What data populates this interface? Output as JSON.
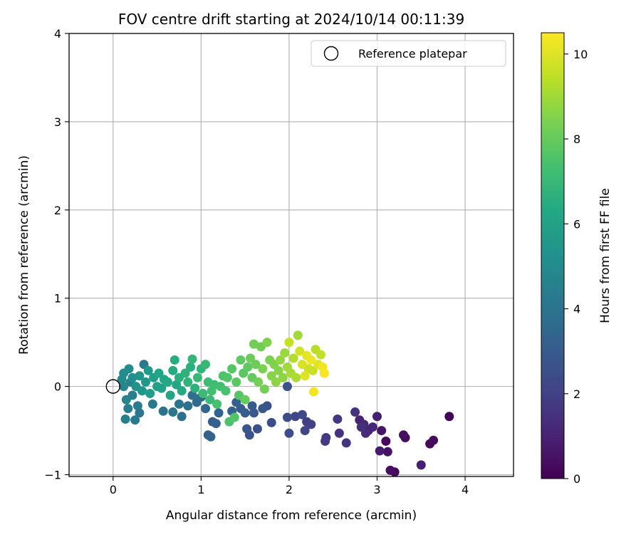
{
  "chart_data": {
    "type": "scatter",
    "title": "FOV centre drift starting at 2024/10/14 00:11:39",
    "xlabel": "Angular distance from reference (arcmin)",
    "ylabel": "Rotation from reference (arcmin)",
    "xlim": [
      -0.5,
      4.55
    ],
    "ylim": [
      -1.02,
      4.0
    ],
    "xticks": [
      0,
      1,
      2,
      3,
      4
    ],
    "yticks": [
      -1,
      0,
      1,
      2,
      3,
      4
    ],
    "xtick_labels": [
      "0",
      "1",
      "2",
      "3",
      "4"
    ],
    "ytick_labels": [
      "−1",
      "0",
      "1",
      "2",
      "3",
      "4"
    ],
    "grid": true,
    "legend": {
      "position": "top-right",
      "entries": [
        {
          "label": "Reference platepar",
          "marker": "open-circle"
        }
      ]
    },
    "reference_point": {
      "x": 0,
      "y": 0
    },
    "colorbar": {
      "label": "Hours from first FF file",
      "colormap": "viridis",
      "range": [
        0,
        10.5
      ],
      "ticks": [
        0,
        2,
        4,
        6,
        8,
        10
      ],
      "tick_labels": [
        "0",
        "2",
        "4",
        "6",
        "8",
        "10"
      ]
    },
    "points": [
      {
        "x": 3.82,
        "y": -0.34,
        "c": 0.1
      },
      {
        "x": 3.2,
        "y": -0.97,
        "c": 0.3
      },
      {
        "x": 3.15,
        "y": -0.95,
        "c": 0.4
      },
      {
        "x": 3.12,
        "y": -0.74,
        "c": 0.5
      },
      {
        "x": 3.1,
        "y": -0.62,
        "c": 0.2
      },
      {
        "x": 3.05,
        "y": -0.5,
        "c": 0.6
      },
      {
        "x": 3.03,
        "y": -0.73,
        "c": 0.8
      },
      {
        "x": 3.3,
        "y": -0.55,
        "c": 0.4
      },
      {
        "x": 3.32,
        "y": -0.58,
        "c": 0.3
      },
      {
        "x": 3.5,
        "y": -0.89,
        "c": 0.9
      },
      {
        "x": 3.6,
        "y": -0.65,
        "c": 0.2
      },
      {
        "x": 3.64,
        "y": -0.61,
        "c": 0.3
      },
      {
        "x": 3.0,
        "y": -0.34,
        "c": 0.9
      },
      {
        "x": 2.95,
        "y": -0.46,
        "c": 1.1
      },
      {
        "x": 2.9,
        "y": -0.5,
        "c": 1.0
      },
      {
        "x": 2.87,
        "y": -0.53,
        "c": 1.3
      },
      {
        "x": 2.85,
        "y": -0.43,
        "c": 1.2
      },
      {
        "x": 2.82,
        "y": -0.46,
        "c": 1.4
      },
      {
        "x": 2.8,
        "y": -0.38,
        "c": 1.0
      },
      {
        "x": 2.75,
        "y": -0.29,
        "c": 1.5
      },
      {
        "x": 2.65,
        "y": -0.64,
        "c": 1.6
      },
      {
        "x": 2.57,
        "y": -0.53,
        "c": 1.5
      },
      {
        "x": 2.55,
        "y": -0.37,
        "c": 1.7
      },
      {
        "x": 2.42,
        "y": -0.58,
        "c": 1.8
      },
      {
        "x": 2.41,
        "y": -0.62,
        "c": 1.7
      },
      {
        "x": 2.25,
        "y": -0.43,
        "c": 2.0
      },
      {
        "x": 2.2,
        "y": -0.4,
        "c": 1.9
      },
      {
        "x": 2.18,
        "y": -0.5,
        "c": 2.1
      },
      {
        "x": 2.15,
        "y": -0.32,
        "c": 2.3
      },
      {
        "x": 2.07,
        "y": -0.34,
        "c": 2.2
      },
      {
        "x": 2.0,
        "y": -0.53,
        "c": 2.4
      },
      {
        "x": 1.98,
        "y": -0.35,
        "c": 2.5
      },
      {
        "x": 1.98,
        "y": 0.0,
        "c": 2.6
      },
      {
        "x": 1.8,
        "y": -0.41,
        "c": 2.5
      },
      {
        "x": 1.75,
        "y": -0.22,
        "c": 2.7
      },
      {
        "x": 1.7,
        "y": -0.25,
        "c": 2.8
      },
      {
        "x": 1.64,
        "y": -0.48,
        "c": 2.6
      },
      {
        "x": 1.6,
        "y": -0.3,
        "c": 2.9
      },
      {
        "x": 1.58,
        "y": -0.22,
        "c": 3.0
      },
      {
        "x": 1.55,
        "y": -0.55,
        "c": 2.7
      },
      {
        "x": 1.52,
        "y": -0.48,
        "c": 2.8
      },
      {
        "x": 1.5,
        "y": -0.3,
        "c": 3.1
      },
      {
        "x": 1.45,
        "y": -0.25,
        "c": 3.0
      },
      {
        "x": 1.4,
        "y": -0.18,
        "c": 3.2
      },
      {
        "x": 1.35,
        "y": -0.28,
        "c": 3.3
      },
      {
        "x": 1.2,
        "y": -0.3,
        "c": 3.4
      },
      {
        "x": 1.17,
        "y": -0.42,
        "c": 3.2
      },
      {
        "x": 1.13,
        "y": -0.4,
        "c": 3.1
      },
      {
        "x": 1.11,
        "y": -0.57,
        "c": 3.3
      },
      {
        "x": 1.08,
        "y": -0.55,
        "c": 3.2
      },
      {
        "x": 1.05,
        "y": -0.25,
        "c": 3.5
      },
      {
        "x": 1.0,
        "y": -0.12,
        "c": 3.6
      },
      {
        "x": 0.95,
        "y": -0.18,
        "c": 3.7
      },
      {
        "x": 0.9,
        "y": -0.1,
        "c": 3.8
      },
      {
        "x": 0.85,
        "y": -0.22,
        "c": 3.9
      },
      {
        "x": 0.75,
        "y": -0.2,
        "c": 4.0
      },
      {
        "x": 0.78,
        "y": -0.34,
        "c": 3.8
      },
      {
        "x": 0.68,
        "y": -0.29,
        "c": 4.1
      },
      {
        "x": 0.57,
        "y": -0.28,
        "c": 4.0
      },
      {
        "x": 0.45,
        "y": -0.2,
        "c": 4.2
      },
      {
        "x": 0.35,
        "y": 0.25,
        "c": 4.3
      },
      {
        "x": 0.3,
        "y": -0.3,
        "c": 4.1
      },
      {
        "x": 0.28,
        "y": -0.22,
        "c": 4.4
      },
      {
        "x": 0.25,
        "y": -0.38,
        "c": 4.3
      },
      {
        "x": 0.22,
        "y": -0.1,
        "c": 4.5
      },
      {
        "x": 0.2,
        "y": 0.05,
        "c": 4.6
      },
      {
        "x": 0.17,
        "y": -0.25,
        "c": 4.4
      },
      {
        "x": 0.15,
        "y": -0.15,
        "c": 4.7
      },
      {
        "x": 0.14,
        "y": -0.37,
        "c": 4.5
      },
      {
        "x": 0.12,
        "y": 0.0,
        "c": 4.8
      },
      {
        "x": 0.1,
        "y": 0.08,
        "c": 4.9
      },
      {
        "x": 0.12,
        "y": 0.15,
        "c": 5.0
      },
      {
        "x": 0.18,
        "y": 0.2,
        "c": 5.1
      },
      {
        "x": 0.22,
        "y": 0.1,
        "c": 5.2
      },
      {
        "x": 0.26,
        "y": 0.0,
        "c": 5.3
      },
      {
        "x": 0.3,
        "y": 0.12,
        "c": 5.4
      },
      {
        "x": 0.33,
        "y": -0.05,
        "c": 5.5
      },
      {
        "x": 0.37,
        "y": 0.05,
        "c": 5.6
      },
      {
        "x": 0.4,
        "y": 0.18,
        "c": 5.7
      },
      {
        "x": 0.42,
        "y": -0.08,
        "c": 5.8
      },
      {
        "x": 0.46,
        "y": 0.1,
        "c": 5.9
      },
      {
        "x": 0.5,
        "y": 0.0,
        "c": 6.0
      },
      {
        "x": 0.52,
        "y": 0.15,
        "c": 6.1
      },
      {
        "x": 0.55,
        "y": -0.02,
        "c": 6.0
      },
      {
        "x": 0.58,
        "y": 0.08,
        "c": 6.2
      },
      {
        "x": 0.62,
        "y": 0.05,
        "c": 6.3
      },
      {
        "x": 0.65,
        "y": -0.1,
        "c": 6.1
      },
      {
        "x": 0.68,
        "y": 0.18,
        "c": 6.4
      },
      {
        "x": 0.7,
        "y": 0.3,
        "c": 6.5
      },
      {
        "x": 0.72,
        "y": 0.02,
        "c": 6.3
      },
      {
        "x": 0.75,
        "y": 0.1,
        "c": 6.6
      },
      {
        "x": 0.78,
        "y": -0.05,
        "c": 6.4
      },
      {
        "x": 0.82,
        "y": 0.15,
        "c": 6.7
      },
      {
        "x": 0.85,
        "y": 0.05,
        "c": 6.8
      },
      {
        "x": 0.88,
        "y": 0.22,
        "c": 6.6
      },
      {
        "x": 0.9,
        "y": 0.31,
        "c": 6.9
      },
      {
        "x": 0.93,
        "y": -0.02,
        "c": 6.7
      },
      {
        "x": 0.96,
        "y": 0.1,
        "c": 7.0
      },
      {
        "x": 1.0,
        "y": 0.2,
        "c": 6.8
      },
      {
        "x": 1.02,
        "y": -0.08,
        "c": 7.1
      },
      {
        "x": 1.05,
        "y": 0.25,
        "c": 7.0
      },
      {
        "x": 1.08,
        "y": 0.05,
        "c": 7.2
      },
      {
        "x": 1.1,
        "y": -0.15,
        "c": 7.1
      },
      {
        "x": 1.12,
        "y": -0.05,
        "c": 7.3
      },
      {
        "x": 1.15,
        "y": 0.02,
        "c": 7.2
      },
      {
        "x": 1.18,
        "y": -0.2,
        "c": 7.4
      },
      {
        "x": 1.22,
        "y": 0.0,
        "c": 7.3
      },
      {
        "x": 1.25,
        "y": 0.12,
        "c": 7.5
      },
      {
        "x": 1.28,
        "y": -0.05,
        "c": 7.4
      },
      {
        "x": 1.3,
        "y": 0.1,
        "c": 7.6
      },
      {
        "x": 1.32,
        "y": -0.4,
        "c": 7.5
      },
      {
        "x": 1.35,
        "y": 0.2,
        "c": 7.7
      },
      {
        "x": 1.38,
        "y": -0.35,
        "c": 7.6
      },
      {
        "x": 1.4,
        "y": 0.05,
        "c": 7.8
      },
      {
        "x": 1.43,
        "y": -0.1,
        "c": 7.7
      },
      {
        "x": 1.45,
        "y": 0.3,
        "c": 7.9
      },
      {
        "x": 1.48,
        "y": 0.15,
        "c": 7.8
      },
      {
        "x": 1.5,
        "y": -0.15,
        "c": 8.0
      },
      {
        "x": 1.53,
        "y": 0.22,
        "c": 7.9
      },
      {
        "x": 1.56,
        "y": 0.32,
        "c": 8.1
      },
      {
        "x": 1.58,
        "y": 0.1,
        "c": 8.0
      },
      {
        "x": 1.6,
        "y": 0.48,
        "c": 8.2
      },
      {
        "x": 1.62,
        "y": 0.25,
        "c": 8.1
      },
      {
        "x": 1.65,
        "y": 0.05,
        "c": 8.3
      },
      {
        "x": 1.68,
        "y": 0.45,
        "c": 8.2
      },
      {
        "x": 1.7,
        "y": 0.2,
        "c": 8.4
      },
      {
        "x": 1.72,
        "y": -0.03,
        "c": 8.3
      },
      {
        "x": 1.75,
        "y": 0.5,
        "c": 8.5
      },
      {
        "x": 1.78,
        "y": 0.3,
        "c": 8.4
      },
      {
        "x": 1.8,
        "y": 0.12,
        "c": 8.6
      },
      {
        "x": 1.83,
        "y": 0.25,
        "c": 8.5
      },
      {
        "x": 1.85,
        "y": 0.05,
        "c": 8.7
      },
      {
        "x": 1.88,
        "y": 0.18,
        "c": 8.6
      },
      {
        "x": 1.9,
        "y": 0.3,
        "c": 8.8
      },
      {
        "x": 1.93,
        "y": 0.1,
        "c": 8.7
      },
      {
        "x": 1.95,
        "y": 0.38,
        "c": 8.9
      },
      {
        "x": 1.98,
        "y": 0.22,
        "c": 9.0
      },
      {
        "x": 2.0,
        "y": 0.5,
        "c": 9.6
      },
      {
        "x": 2.02,
        "y": 0.15,
        "c": 9.1
      },
      {
        "x": 2.05,
        "y": 0.32,
        "c": 9.3
      },
      {
        "x": 2.08,
        "y": 0.1,
        "c": 9.2
      },
      {
        "x": 2.1,
        "y": 0.58,
        "c": 9.0
      },
      {
        "x": 2.12,
        "y": 0.4,
        "c": 9.8
      },
      {
        "x": 2.15,
        "y": 0.25,
        "c": 9.9
      },
      {
        "x": 2.18,
        "y": 0.12,
        "c": 10.0
      },
      {
        "x": 2.2,
        "y": 0.35,
        "c": 10.1
      },
      {
        "x": 2.22,
        "y": 0.2,
        "c": 9.7
      },
      {
        "x": 2.25,
        "y": 0.3,
        "c": 10.2
      },
      {
        "x": 2.28,
        "y": -0.06,
        "c": 10.3
      },
      {
        "x": 2.3,
        "y": 0.42,
        "c": 9.4
      },
      {
        "x": 2.33,
        "y": 0.25,
        "c": 10.0
      },
      {
        "x": 2.36,
        "y": 0.36,
        "c": 9.5
      },
      {
        "x": 2.4,
        "y": 0.15,
        "c": 10.4
      },
      {
        "x": 2.38,
        "y": 0.22,
        "c": 10.3
      },
      {
        "x": 2.27,
        "y": 0.18,
        "c": 9.6
      }
    ]
  }
}
